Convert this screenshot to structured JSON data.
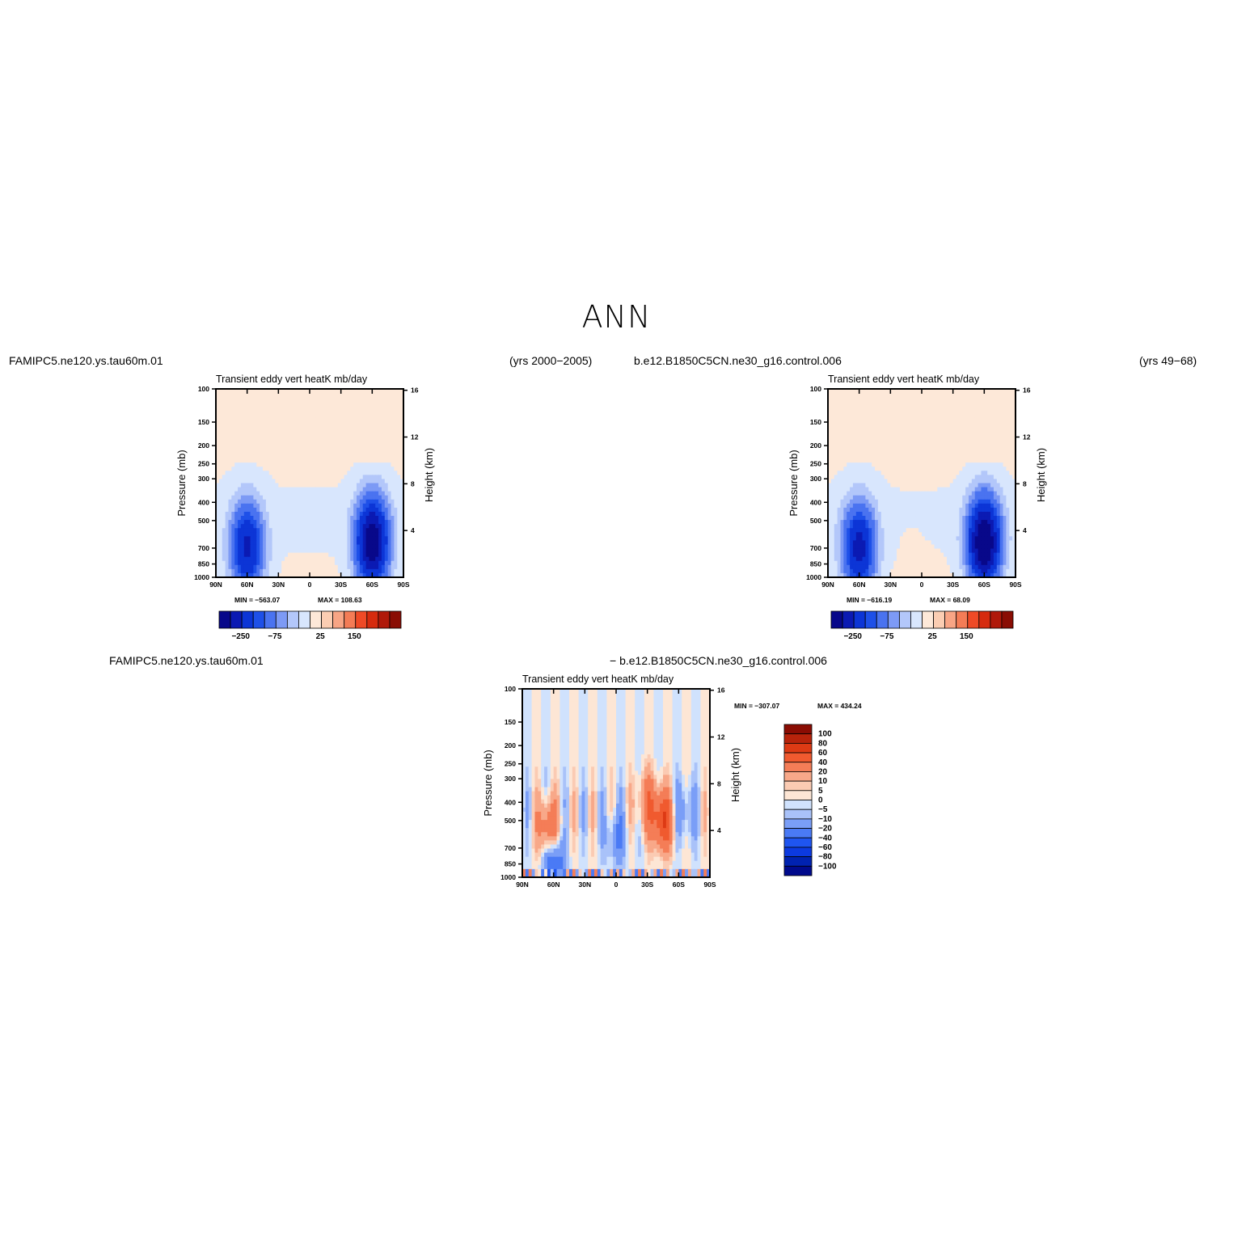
{
  "page": {
    "title": "ANN",
    "top_left_case": "FAMIPC5.ne120.ys.tau60m.01",
    "top_left_years": "(yrs 2000−2005)",
    "top_right_case": "b.e12.B1850C5CN.ne30_g16.control.006",
    "top_right_years": "(yrs 49−68)",
    "diff_case_1": "FAMIPC5.ne120.ys.tau60m.01",
    "diff_case_2": "− b.e12.B1850C5CN.ne30_g16.control.006"
  },
  "colors": {
    "abs_levels": [
      "#08088a",
      "#0b1ab3",
      "#0c35d6",
      "#1e50e8",
      "#4a73f0",
      "#7d9af5",
      "#b3c7fa",
      "#d8e6fd",
      "#fde8d8",
      "#fbcdb2",
      "#f8a585",
      "#f47c56",
      "#ef4a26",
      "#d62b0e",
      "#b0190a",
      "#8a0d04"
    ],
    "diff_levels": [
      "#000a8c",
      "#0022b0",
      "#0c3ae0",
      "#1f55f0",
      "#4a7af5",
      "#7a9ef7",
      "#a9c2f9",
      "#d0e2fd",
      "#fde6d5",
      "#fbcbb3",
      "#f8a889",
      "#f47d57",
      "#f05a2f",
      "#dd3a14",
      "#b7230b",
      "#8a0c03"
    ]
  },
  "chart_data": [
    {
      "type": "heatmap",
      "panel": "top-left",
      "title": "Transient eddy vert heatK",
      "units": "mb/day",
      "ylabel": "Pressure (mb)",
      "ylabel_right": "Height (km)",
      "x_ticks": [
        "90N",
        "60N",
        "30N",
        "0",
        "30S",
        "60S",
        "90S"
      ],
      "x_range": [
        90,
        -90
      ],
      "y_ticks": [
        100,
        150,
        200,
        250,
        300,
        400,
        500,
        700,
        850,
        1000
      ],
      "y_log": true,
      "height_ticks": [
        16,
        12,
        8,
        4
      ],
      "min": -563.07,
      "max": 108.63,
      "min_label": "MIN = −563.07",
      "max_label": "MAX = 108.63",
      "colorbar_labels": [
        "−250",
        "−75",
        "25",
        "150"
      ],
      "features": [
        {
          "kind": "negative",
          "lat": 60,
          "p": 700,
          "value": -400
        },
        {
          "kind": "negative",
          "lat": -60,
          "p": 650,
          "value": -560
        },
        {
          "kind": "positive",
          "lat": 45,
          "p": 130,
          "value": 10
        },
        {
          "kind": "positive",
          "lat": -50,
          "p": 130,
          "value": 10
        }
      ]
    },
    {
      "type": "heatmap",
      "panel": "top-right",
      "title": "Transient eddy vert heatK",
      "units": "mb/day",
      "ylabel": "Pressure (mb)",
      "ylabel_right": "Height (km)",
      "x_ticks": [
        "90N",
        "60N",
        "30N",
        "0",
        "30S",
        "60S",
        "90S"
      ],
      "x_range": [
        90,
        -90
      ],
      "y_ticks": [
        100,
        150,
        200,
        250,
        300,
        400,
        500,
        700,
        850,
        1000
      ],
      "y_log": true,
      "height_ticks": [
        16,
        12,
        8,
        4
      ],
      "min": -616.19,
      "max": 68.09,
      "min_label": "MIN = −616.19",
      "max_label": "MAX =  68.09",
      "colorbar_labels": [
        "−250",
        "−75",
        "25",
        "150"
      ],
      "features": [
        {
          "kind": "negative",
          "lat": 60,
          "p": 700,
          "value": -420
        },
        {
          "kind": "negative",
          "lat": -60,
          "p": 650,
          "value": -600
        },
        {
          "kind": "positive",
          "lat": 40,
          "p": 130,
          "value": 10
        },
        {
          "kind": "positive",
          "lat": -50,
          "p": 130,
          "value": 10
        },
        {
          "kind": "positive",
          "lat": 10,
          "p": 600,
          "value": 5
        }
      ]
    },
    {
      "type": "heatmap",
      "panel": "difference",
      "title": "Transient eddy vert heatK",
      "units": "mb/day",
      "ylabel": "Pressure (mb)",
      "ylabel_right": "Height (km)",
      "x_ticks": [
        "90N",
        "60N",
        "30N",
        "0",
        "30S",
        "60S",
        "90S"
      ],
      "x_range": [
        90,
        -90
      ],
      "y_ticks": [
        100,
        150,
        200,
        250,
        300,
        400,
        500,
        700,
        850,
        1000
      ],
      "y_log": true,
      "height_ticks": [
        16,
        12,
        8,
        4
      ],
      "min": -307.07,
      "max": 434.24,
      "min_label": "MIN = −307.07",
      "max_label": "MAX = 434.24",
      "colorbar_labels": [
        "100",
        "80",
        "60",
        "40",
        "20",
        "10",
        "5",
        "0",
        "−5",
        "−10",
        "−20",
        "−40",
        "−60",
        "−80",
        "−100"
      ],
      "features": [
        {
          "kind": "positive",
          "lat": 65,
          "p": 550,
          "value": 40
        },
        {
          "kind": "positive",
          "lat": -45,
          "p": 500,
          "value": 60
        },
        {
          "kind": "positive",
          "lat": -30,
          "p": 400,
          "value": 30
        },
        {
          "kind": "negative",
          "lat": 60,
          "p": 850,
          "value": -40
        },
        {
          "kind": "negative",
          "lat": 0,
          "p": 620,
          "value": -20
        },
        {
          "kind": "negative",
          "lat": -65,
          "p": 450,
          "value": -20
        }
      ]
    }
  ]
}
